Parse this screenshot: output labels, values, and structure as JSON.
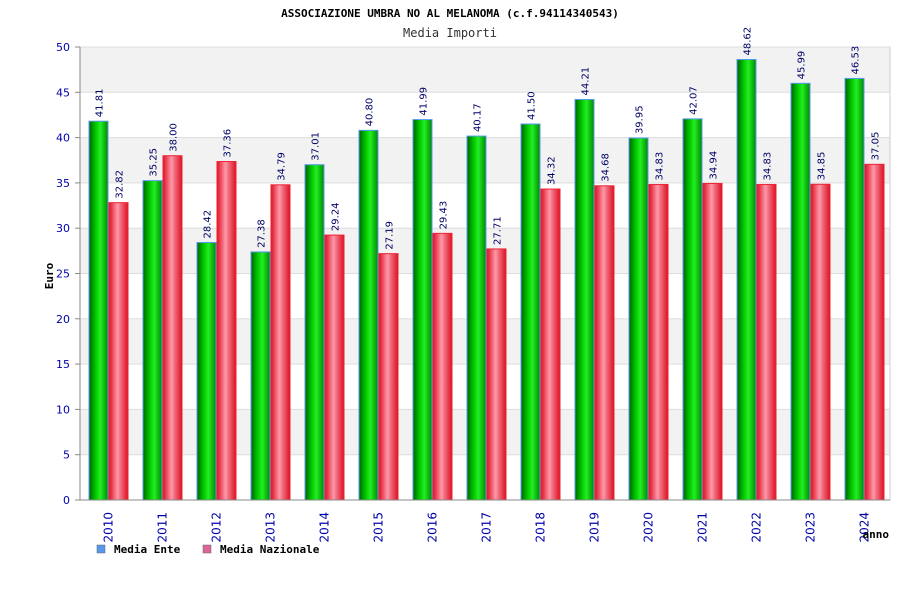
{
  "chart_data": {
    "type": "bar",
    "title": "ASSOCIAZIONE UMBRA NO AL MELANOMA (c.f.94114340543)",
    "subtitle": "Media Importi",
    "ylabel": "Euro",
    "xlabel": "anno",
    "ylim": [
      0,
      50
    ],
    "yticks": [
      0,
      5,
      10,
      15,
      20,
      25,
      30,
      35,
      40,
      45,
      50
    ],
    "grid": true,
    "legend_position": "bottom-left",
    "categories": [
      "2010",
      "2011",
      "2012",
      "2013",
      "2014",
      "2015",
      "2016",
      "2017",
      "2018",
      "2019",
      "2020",
      "2021",
      "2022",
      "2023",
      "2024"
    ],
    "series": [
      {
        "name": "Media Ente",
        "color": "#00c000",
        "legend_color": "#5599ee",
        "values": [
          41.81,
          35.25,
          28.42,
          27.38,
          37.01,
          40.8,
          41.99,
          40.17,
          41.5,
          44.21,
          39.95,
          42.07,
          48.62,
          45.99,
          46.53
        ],
        "labels": [
          "41.81",
          "35.25",
          "28.42",
          "27.38",
          "37.01",
          "40.80",
          "41.99",
          "40.17",
          "41.50",
          "44.21",
          "39.95",
          "42.07",
          "48.62",
          "45.99",
          "46.53"
        ]
      },
      {
        "name": "Media Nazionale",
        "color": "#ee2233",
        "legend_color": "#dd6699",
        "values": [
          32.82,
          38.0,
          37.36,
          34.79,
          29.24,
          27.19,
          29.43,
          27.71,
          34.32,
          34.68,
          34.83,
          34.94,
          34.83,
          34.85,
          37.05
        ],
        "labels": [
          "32.82",
          "38.00",
          "37.36",
          "34.79",
          "29.24",
          "27.19",
          "29.43",
          "27.71",
          "34.32",
          "34.68",
          "34.83",
          "34.94",
          "34.83",
          "34.85",
          "37.05"
        ]
      }
    ]
  }
}
